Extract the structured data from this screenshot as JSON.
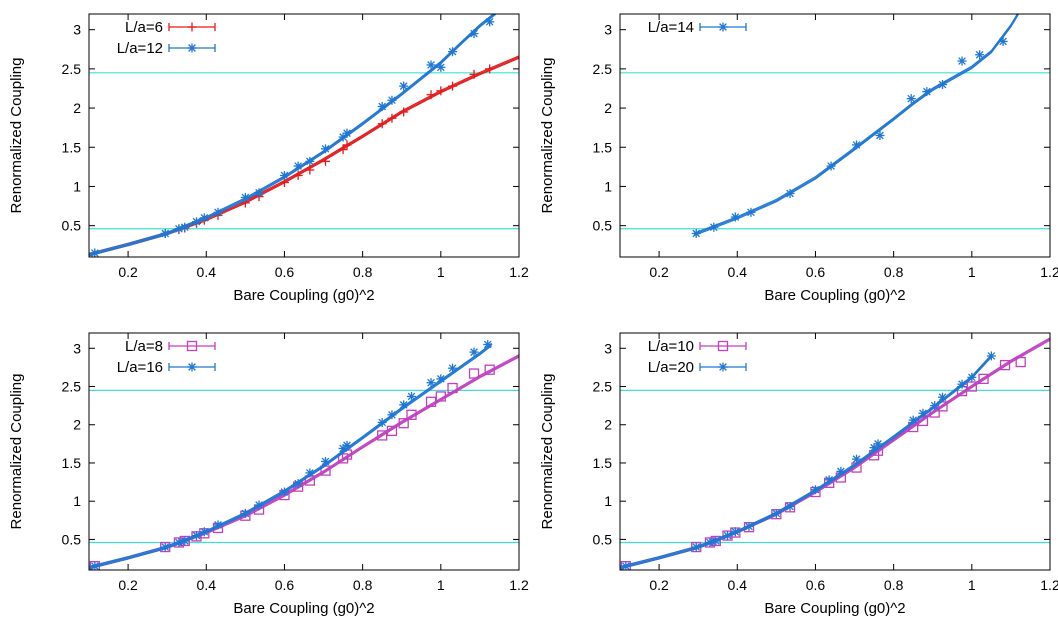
{
  "chart_data": [
    {
      "type": "scatter",
      "title": "",
      "xlabel": "Bare Coupling (g0)^2",
      "ylabel": "Renormalized Coupling",
      "xlim": [
        0.1,
        1.2
      ],
      "ylim": [
        0.1,
        3.2
      ],
      "xticks": [
        "0.2",
        "0.4",
        "0.6",
        "0.8",
        "1",
        "1.2"
      ],
      "yticks": [
        "0.5",
        "1",
        "1.5",
        "2",
        "2.5",
        "3"
      ],
      "reference_lines": [
        0.46,
        2.45
      ],
      "reference_color": "#40e0d0",
      "legend_position": "top-left",
      "series": [
        {
          "name": "L/a=6",
          "color": "#e41a1c",
          "marker": "plus",
          "x": [
            0.115,
            0.295,
            0.33,
            0.345,
            0.375,
            0.395,
            0.43,
            0.5,
            0.535,
            0.6,
            0.635,
            0.665,
            0.705,
            0.75,
            0.76,
            0.85,
            0.875,
            0.905,
            0.975,
            1.0,
            1.03,
            1.085,
            1.125
          ],
          "y": [
            0.15,
            0.4,
            0.45,
            0.47,
            0.53,
            0.57,
            0.63,
            0.79,
            0.87,
            1.05,
            1.14,
            1.21,
            1.32,
            1.47,
            1.53,
            1.8,
            1.87,
            1.95,
            2.17,
            2.22,
            2.28,
            2.43,
            2.5
          ],
          "fit_x": [
            0.1,
            0.2,
            0.3,
            0.4,
            0.5,
            0.6,
            0.7,
            0.8,
            0.9,
            1.0,
            1.1,
            1.2
          ],
          "fit_y": [
            0.13,
            0.26,
            0.4,
            0.58,
            0.8,
            1.06,
            1.34,
            1.64,
            1.95,
            2.21,
            2.44,
            2.65
          ]
        },
        {
          "name": "L/a=12",
          "color": "#1f77d4",
          "marker": "star",
          "x": [
            0.115,
            0.295,
            0.33,
            0.345,
            0.375,
            0.395,
            0.43,
            0.5,
            0.535,
            0.6,
            0.635,
            0.665,
            0.705,
            0.75,
            0.76,
            0.85,
            0.875,
            0.905,
            0.975,
            1.0,
            1.03,
            1.085,
            1.125
          ],
          "y": [
            0.15,
            0.4,
            0.46,
            0.48,
            0.55,
            0.6,
            0.67,
            0.86,
            0.92,
            1.14,
            1.26,
            1.32,
            1.48,
            1.63,
            1.68,
            2.02,
            2.1,
            2.28,
            2.55,
            2.52,
            2.72,
            2.95,
            3.1
          ],
          "fit_x": [
            0.1,
            0.2,
            0.3,
            0.4,
            0.5,
            0.6,
            0.7,
            0.8,
            0.9,
            1.0,
            1.05,
            1.1,
            1.15
          ],
          "fit_y": [
            0.13,
            0.26,
            0.4,
            0.6,
            0.84,
            1.12,
            1.44,
            1.8,
            2.18,
            2.58,
            2.82,
            3.05,
            3.25
          ]
        }
      ]
    },
    {
      "type": "scatter",
      "title": "",
      "xlabel": "Bare Coupling (g0)^2",
      "ylabel": "Renormalized Coupling",
      "xlim": [
        0.1,
        1.2
      ],
      "ylim": [
        0.1,
        3.2
      ],
      "xticks": [
        "0.2",
        "0.4",
        "0.6",
        "0.8",
        "1",
        "1.2"
      ],
      "yticks": [
        "0.5",
        "1",
        "1.5",
        "2",
        "2.5",
        "3"
      ],
      "reference_lines": [
        0.46,
        2.45
      ],
      "reference_color": "#40e0d0",
      "legend_position": "top-left",
      "series": [
        {
          "name": "L/a=14",
          "color": "#1f77d4",
          "marker": "star",
          "x": [
            0.295,
            0.34,
            0.395,
            0.435,
            0.535,
            0.64,
            0.705,
            0.765,
            0.845,
            0.885,
            0.925,
            0.975,
            1.02,
            1.08
          ],
          "y": [
            0.4,
            0.48,
            0.61,
            0.67,
            0.91,
            1.26,
            1.53,
            1.65,
            2.12,
            2.21,
            2.3,
            2.6,
            2.68,
            2.85
          ],
          "fit_x": [
            0.29,
            0.4,
            0.5,
            0.6,
            0.7,
            0.8,
            0.85,
            0.9,
            0.95,
            1.0,
            1.05,
            1.1,
            1.13
          ],
          "fit_y": [
            0.39,
            0.6,
            0.82,
            1.11,
            1.48,
            1.86,
            2.06,
            2.24,
            2.38,
            2.52,
            2.72,
            3.05,
            3.3
          ]
        }
      ]
    },
    {
      "type": "scatter",
      "title": "",
      "xlabel": "Bare Coupling (g0)^2",
      "ylabel": "Renormalized Coupling",
      "xlim": [
        0.1,
        1.2
      ],
      "ylim": [
        0.1,
        3.2
      ],
      "xticks": [
        "0.2",
        "0.4",
        "0.6",
        "0.8",
        "1",
        "1.2"
      ],
      "yticks": [
        "0.5",
        "1",
        "1.5",
        "2",
        "2.5",
        "3"
      ],
      "reference_lines": [
        0.46,
        2.45
      ],
      "reference_color": "#40e0d0",
      "legend_position": "top-left",
      "series": [
        {
          "name": "L/a=8",
          "color": "#c040c0",
          "marker": "square",
          "x": [
            0.115,
            0.295,
            0.33,
            0.345,
            0.375,
            0.395,
            0.43,
            0.5,
            0.535,
            0.6,
            0.635,
            0.665,
            0.705,
            0.75,
            0.76,
            0.85,
            0.875,
            0.905,
            0.925,
            0.975,
            1.0,
            1.03,
            1.085,
            1.125
          ],
          "y": [
            0.15,
            0.4,
            0.46,
            0.48,
            0.54,
            0.58,
            0.65,
            0.81,
            0.89,
            1.08,
            1.19,
            1.27,
            1.4,
            1.56,
            1.61,
            1.86,
            1.92,
            2.02,
            2.13,
            2.3,
            2.37,
            2.48,
            2.67,
            2.72
          ],
          "fit_x": [
            0.1,
            0.2,
            0.3,
            0.4,
            0.5,
            0.6,
            0.7,
            0.8,
            0.9,
            1.0,
            1.1,
            1.2
          ],
          "fit_y": [
            0.13,
            0.26,
            0.4,
            0.59,
            0.81,
            1.08,
            1.38,
            1.71,
            2.03,
            2.33,
            2.63,
            2.9
          ]
        },
        {
          "name": "L/a=16",
          "color": "#1f77d4",
          "marker": "star",
          "x": [
            0.115,
            0.295,
            0.33,
            0.345,
            0.375,
            0.395,
            0.43,
            0.5,
            0.535,
            0.6,
            0.635,
            0.665,
            0.705,
            0.75,
            0.76,
            0.85,
            0.875,
            0.905,
            0.925,
            0.975,
            1.0,
            1.03,
            1.085,
            1.12
          ],
          "y": [
            0.15,
            0.4,
            0.46,
            0.48,
            0.55,
            0.6,
            0.69,
            0.84,
            0.95,
            1.12,
            1.23,
            1.37,
            1.52,
            1.69,
            1.73,
            2.03,
            2.13,
            2.26,
            2.37,
            2.55,
            2.6,
            2.74,
            2.95,
            3.05
          ],
          "fit_x": [
            0.1,
            0.2,
            0.3,
            0.4,
            0.5,
            0.6,
            0.7,
            0.8,
            0.9,
            1.0,
            1.1,
            1.13
          ],
          "fit_y": [
            0.13,
            0.26,
            0.4,
            0.6,
            0.84,
            1.13,
            1.46,
            1.83,
            2.21,
            2.57,
            2.93,
            3.05
          ]
        }
      ]
    },
    {
      "type": "scatter",
      "title": "",
      "xlabel": "Bare Coupling (g0)^2",
      "ylabel": "Renormalized Coupling",
      "xlim": [
        0.1,
        1.2
      ],
      "ylim": [
        0.1,
        3.2
      ],
      "xticks": [
        "0.2",
        "0.4",
        "0.6",
        "0.8",
        "1",
        "1.2"
      ],
      "yticks": [
        "0.5",
        "1",
        "1.5",
        "2",
        "2.5",
        "3"
      ],
      "reference_lines": [
        0.46,
        2.45
      ],
      "reference_color": "#40e0d0",
      "legend_position": "top-left",
      "series": [
        {
          "name": "L/a=10",
          "color": "#c040c0",
          "marker": "square",
          "x": [
            0.115,
            0.295,
            0.33,
            0.345,
            0.375,
            0.395,
            0.43,
            0.5,
            0.535,
            0.6,
            0.635,
            0.665,
            0.705,
            0.75,
            0.76,
            0.85,
            0.875,
            0.905,
            0.925,
            0.975,
            1.0,
            1.03,
            1.085,
            1.125
          ],
          "y": [
            0.15,
            0.4,
            0.46,
            0.48,
            0.55,
            0.59,
            0.66,
            0.83,
            0.92,
            1.12,
            1.24,
            1.31,
            1.44,
            1.6,
            1.66,
            1.97,
            2.05,
            2.16,
            2.24,
            2.44,
            2.5,
            2.6,
            2.78,
            2.82
          ],
          "fit_x": [
            0.1,
            0.2,
            0.3,
            0.4,
            0.5,
            0.6,
            0.7,
            0.8,
            0.9,
            1.0,
            1.1,
            1.2
          ],
          "fit_y": [
            0.13,
            0.26,
            0.4,
            0.6,
            0.83,
            1.12,
            1.44,
            1.8,
            2.16,
            2.5,
            2.83,
            3.12
          ]
        },
        {
          "name": "L/a=20",
          "color": "#1f77d4",
          "marker": "star",
          "x": [
            0.115,
            0.295,
            0.33,
            0.345,
            0.375,
            0.395,
            0.43,
            0.5,
            0.535,
            0.6,
            0.635,
            0.665,
            0.705,
            0.75,
            0.76,
            0.85,
            0.875,
            0.905,
            0.925,
            0.975,
            1.0,
            1.05
          ],
          "y": [
            0.15,
            0.4,
            0.46,
            0.48,
            0.55,
            0.6,
            0.67,
            0.84,
            0.93,
            1.15,
            1.28,
            1.39,
            1.55,
            1.7,
            1.75,
            2.06,
            2.15,
            2.25,
            2.36,
            2.53,
            2.62,
            2.9
          ],
          "fit_x": [
            0.1,
            0.2,
            0.3,
            0.4,
            0.5,
            0.6,
            0.7,
            0.8,
            0.9,
            1.0,
            1.05
          ],
          "fit_y": [
            0.13,
            0.26,
            0.4,
            0.6,
            0.84,
            1.14,
            1.47,
            1.84,
            2.22,
            2.62,
            2.9
          ]
        }
      ]
    }
  ]
}
